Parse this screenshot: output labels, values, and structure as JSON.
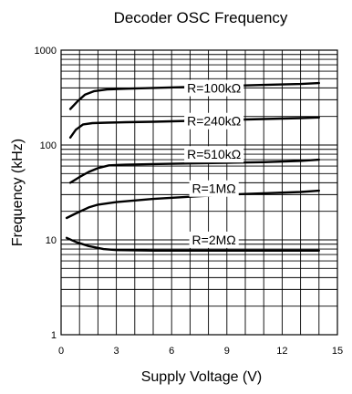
{
  "chart_data": {
    "type": "line",
    "title": "Decoder OSC Frequency",
    "xlabel": "Supply Voltage  (V)",
    "ylabel": "Frequency  (kHz)",
    "xlim": [
      0,
      15
    ],
    "ylim": [
      1,
      1000
    ],
    "y_scale": "log",
    "grid": true,
    "x_ticks": [
      0,
      3,
      6,
      9,
      12,
      15
    ],
    "x_tick_labels": [
      "0",
      "3",
      "6",
      "9",
      "12",
      "15"
    ],
    "y_ticks": [
      1,
      10,
      100,
      1000
    ],
    "y_tick_labels": [
      "1",
      "10",
      "100",
      "1000"
    ],
    "series": [
      {
        "name": "R=100kΩ",
        "x": [
          0.5,
          0.9,
          1.3,
          1.8,
          2.5,
          3.5,
          5,
          7,
          9,
          11,
          13,
          14
        ],
        "y": [
          240,
          290,
          340,
          370,
          385,
          392,
          400,
          410,
          420,
          430,
          440,
          450
        ]
      },
      {
        "name": "R=240kΩ",
        "x": [
          0.5,
          0.8,
          1.2,
          1.7,
          2.5,
          3.5,
          5,
          7,
          9,
          11,
          13,
          14
        ],
        "y": [
          120,
          145,
          165,
          170,
          172,
          174,
          176,
          180,
          184,
          188,
          192,
          195
        ]
      },
      {
        "name": "R=510kΩ",
        "x": [
          0.5,
          1,
          1.5,
          2,
          2.6,
          3.5,
          5,
          7,
          9,
          11,
          13,
          14
        ],
        "y": [
          40,
          46,
          52,
          57,
          61,
          62,
          63,
          64,
          65,
          66,
          68,
          70
        ]
      },
      {
        "name": "R=1MΩ",
        "x": [
          0.3,
          0.8,
          1.5,
          2,
          3,
          4,
          5,
          7,
          9,
          11,
          13,
          14
        ],
        "y": [
          17,
          19,
          22,
          23.5,
          25,
          26,
          27,
          28.5,
          30,
          31,
          32,
          33
        ]
      },
      {
        "name": "R=2MΩ",
        "x": [
          0.3,
          0.8,
          1.5,
          2.3,
          3,
          5,
          7,
          9,
          11,
          13,
          14
        ],
        "y": [
          10.5,
          9.5,
          8.6,
          8.0,
          7.8,
          7.7,
          7.7,
          7.7,
          7.7,
          7.7,
          7.7
        ]
      }
    ],
    "series_label_positions": [
      {
        "name": "R=100kΩ",
        "x": 8.3,
        "y": 390
      },
      {
        "name": "R=240kΩ",
        "x": 8.3,
        "y": 175
      },
      {
        "name": "R=510kΩ",
        "x": 8.3,
        "y": 78
      },
      {
        "name": "R=1MΩ",
        "x": 8.3,
        "y": 34
      },
      {
        "name": "R=2MΩ",
        "x": 8.3,
        "y": 9.8
      }
    ]
  }
}
